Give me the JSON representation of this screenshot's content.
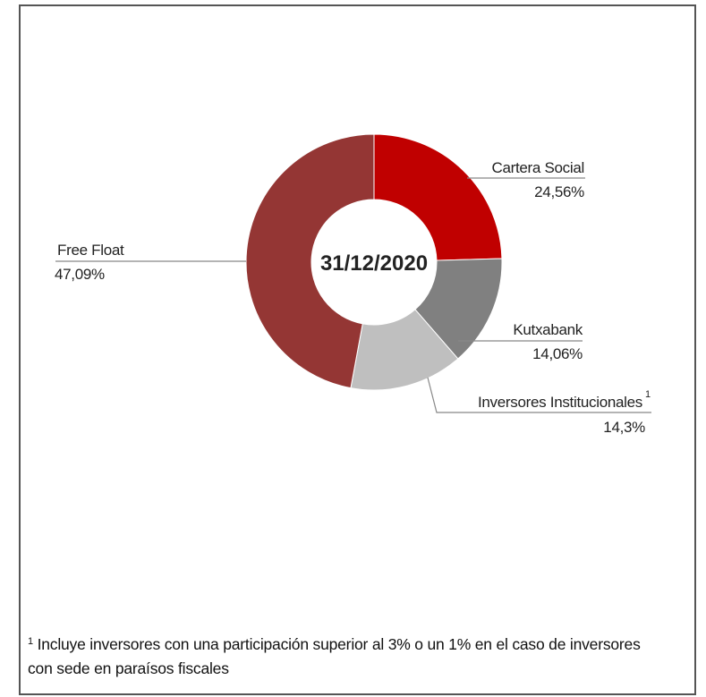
{
  "chart_data": {
    "type": "pie",
    "donut": true,
    "center_label": "31/12/2020",
    "series": [
      {
        "name": "Cartera Social",
        "value": 24.56,
        "value_label": "24,56%",
        "color": "#c00000"
      },
      {
        "name": "Kutxabank",
        "value": 14.06,
        "value_label": "14,06%",
        "color": "#808080"
      },
      {
        "name": "Inversores Institucionales",
        "value": 14.3,
        "value_label": "14,3%",
        "color": "#bfbfbf",
        "superscript": "1"
      },
      {
        "name": "Free Float",
        "value": 47.09,
        "value_label": "47,09%",
        "color": "#943634"
      }
    ]
  },
  "footnote": {
    "marker": "1",
    "text": "Incluye inversores con una participación superior al 3% o un 1% en el caso de inversores con sede en paraísos fiscales"
  }
}
